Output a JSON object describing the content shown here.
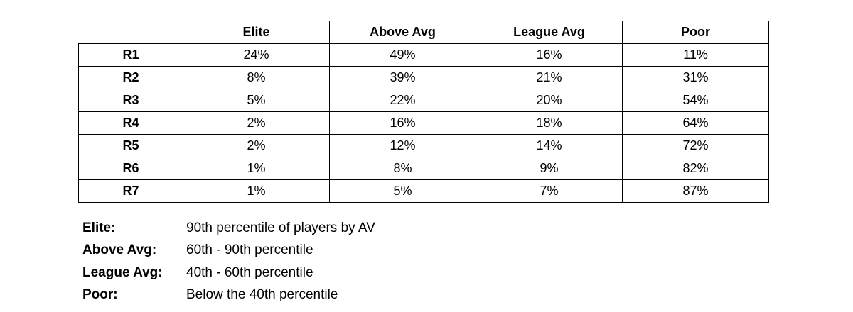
{
  "chart_data": {
    "type": "table",
    "columns": [
      "Elite",
      "Above Avg",
      "League Avg",
      "Poor"
    ],
    "rows": [
      {
        "label": "R1",
        "values": [
          "24%",
          "49%",
          "16%",
          "11%"
        ]
      },
      {
        "label": "R2",
        "values": [
          "8%",
          "39%",
          "21%",
          "31%"
        ]
      },
      {
        "label": "R3",
        "values": [
          "5%",
          "22%",
          "20%",
          "54%"
        ]
      },
      {
        "label": "R4",
        "values": [
          "2%",
          "16%",
          "18%",
          "64%"
        ]
      },
      {
        "label": "R5",
        "values": [
          "2%",
          "12%",
          "14%",
          "72%"
        ]
      },
      {
        "label": "R6",
        "values": [
          "1%",
          "8%",
          "9%",
          "82%"
        ]
      },
      {
        "label": "R7",
        "values": [
          "1%",
          "5%",
          "7%",
          "87%"
        ]
      }
    ]
  },
  "legend": [
    {
      "term": "Elite:",
      "definition": "90th percentile of players by AV"
    },
    {
      "term": "Above Avg:",
      "definition": "60th - 90th percentile"
    },
    {
      "term": "League Avg:",
      "definition": "40th - 60th percentile"
    },
    {
      "term": "Poor:",
      "definition": "Below the 40th percentile"
    }
  ]
}
